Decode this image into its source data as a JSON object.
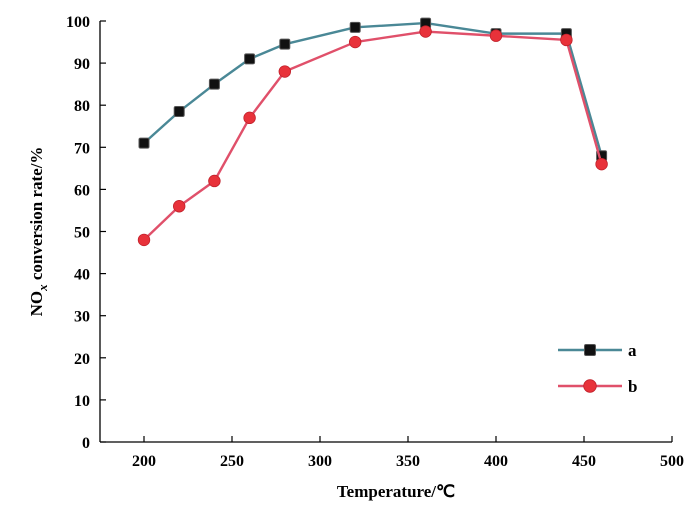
{
  "chart_data": {
    "type": "line",
    "xlabel": "Temperature/℃",
    "ylabel": {
      "prefix": "NO",
      "subscript": "x",
      "suffix": " conversion rate/%"
    },
    "xlim": [
      175,
      500
    ],
    "ylim": [
      0,
      100
    ],
    "xticks": [
      200,
      250,
      300,
      350,
      400,
      450,
      500
    ],
    "yticks": [
      0,
      10,
      20,
      30,
      40,
      50,
      60,
      70,
      80,
      90,
      100
    ],
    "grid": false,
    "legend_position": "bottom-right",
    "series": [
      {
        "name": "a",
        "line_color": "#4a8896",
        "marker_color": "#111111",
        "marker": "square",
        "x": [
          200,
          220,
          240,
          260,
          280,
          320,
          360,
          400,
          440,
          460
        ],
        "y": [
          71,
          78.5,
          85,
          91,
          94.5,
          98.5,
          99.5,
          97,
          97,
          68
        ]
      },
      {
        "name": "b",
        "line_color": "#e0506a",
        "marker_color": "#e8323a",
        "marker": "circle",
        "x": [
          200,
          220,
          240,
          260,
          280,
          320,
          360,
          400,
          440,
          460
        ],
        "y": [
          48,
          56,
          62,
          77,
          88,
          95,
          97.5,
          96.5,
          95.5,
          66
        ]
      }
    ]
  }
}
